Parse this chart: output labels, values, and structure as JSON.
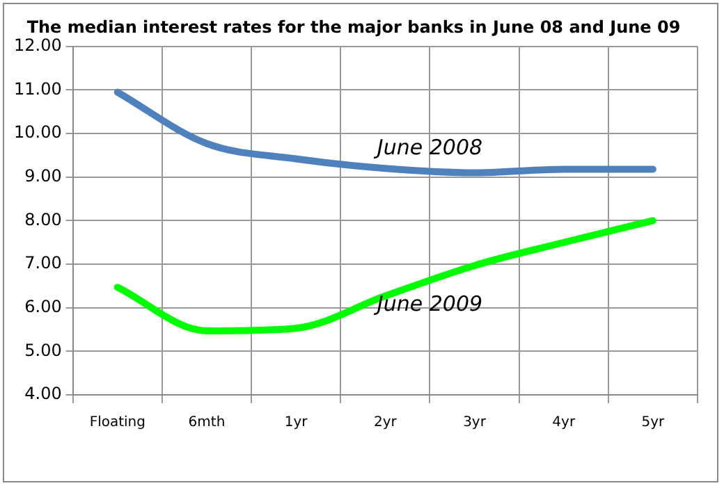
{
  "chart_data": {
    "type": "line",
    "title": "The median interest rates for the major banks in June 08 and June 09",
    "categories": [
      "Floating",
      "6mth",
      "1yr",
      "2yr",
      "3yr",
      "4yr",
      "5yr"
    ],
    "series": [
      {
        "name": "June 2008",
        "color": "#4f81bd",
        "values": [
          10.95,
          9.77,
          9.42,
          9.2,
          9.1,
          9.18,
          9.18
        ]
      },
      {
        "name": "June 2009",
        "color": "#00ff00",
        "values": [
          6.47,
          5.47,
          5.53,
          6.27,
          6.97,
          7.5,
          8.0
        ]
      }
    ],
    "ylim": [
      4,
      12
    ],
    "yticks": [
      {
        "value": 4,
        "label": "4.00"
      },
      {
        "value": 5,
        "label": "5.00"
      },
      {
        "value": 6,
        "label": "6.00"
      },
      {
        "value": 7,
        "label": "7.00"
      },
      {
        "value": 8,
        "label": "8.00"
      },
      {
        "value": 9,
        "label": "9.00"
      },
      {
        "value": 10,
        "label": "10.00"
      },
      {
        "value": 11,
        "label": "11.00"
      },
      {
        "value": 12,
        "label": "12.00"
      }
    ],
    "grid": true,
    "legend": false,
    "marker": "none",
    "line_style": "solid"
  }
}
